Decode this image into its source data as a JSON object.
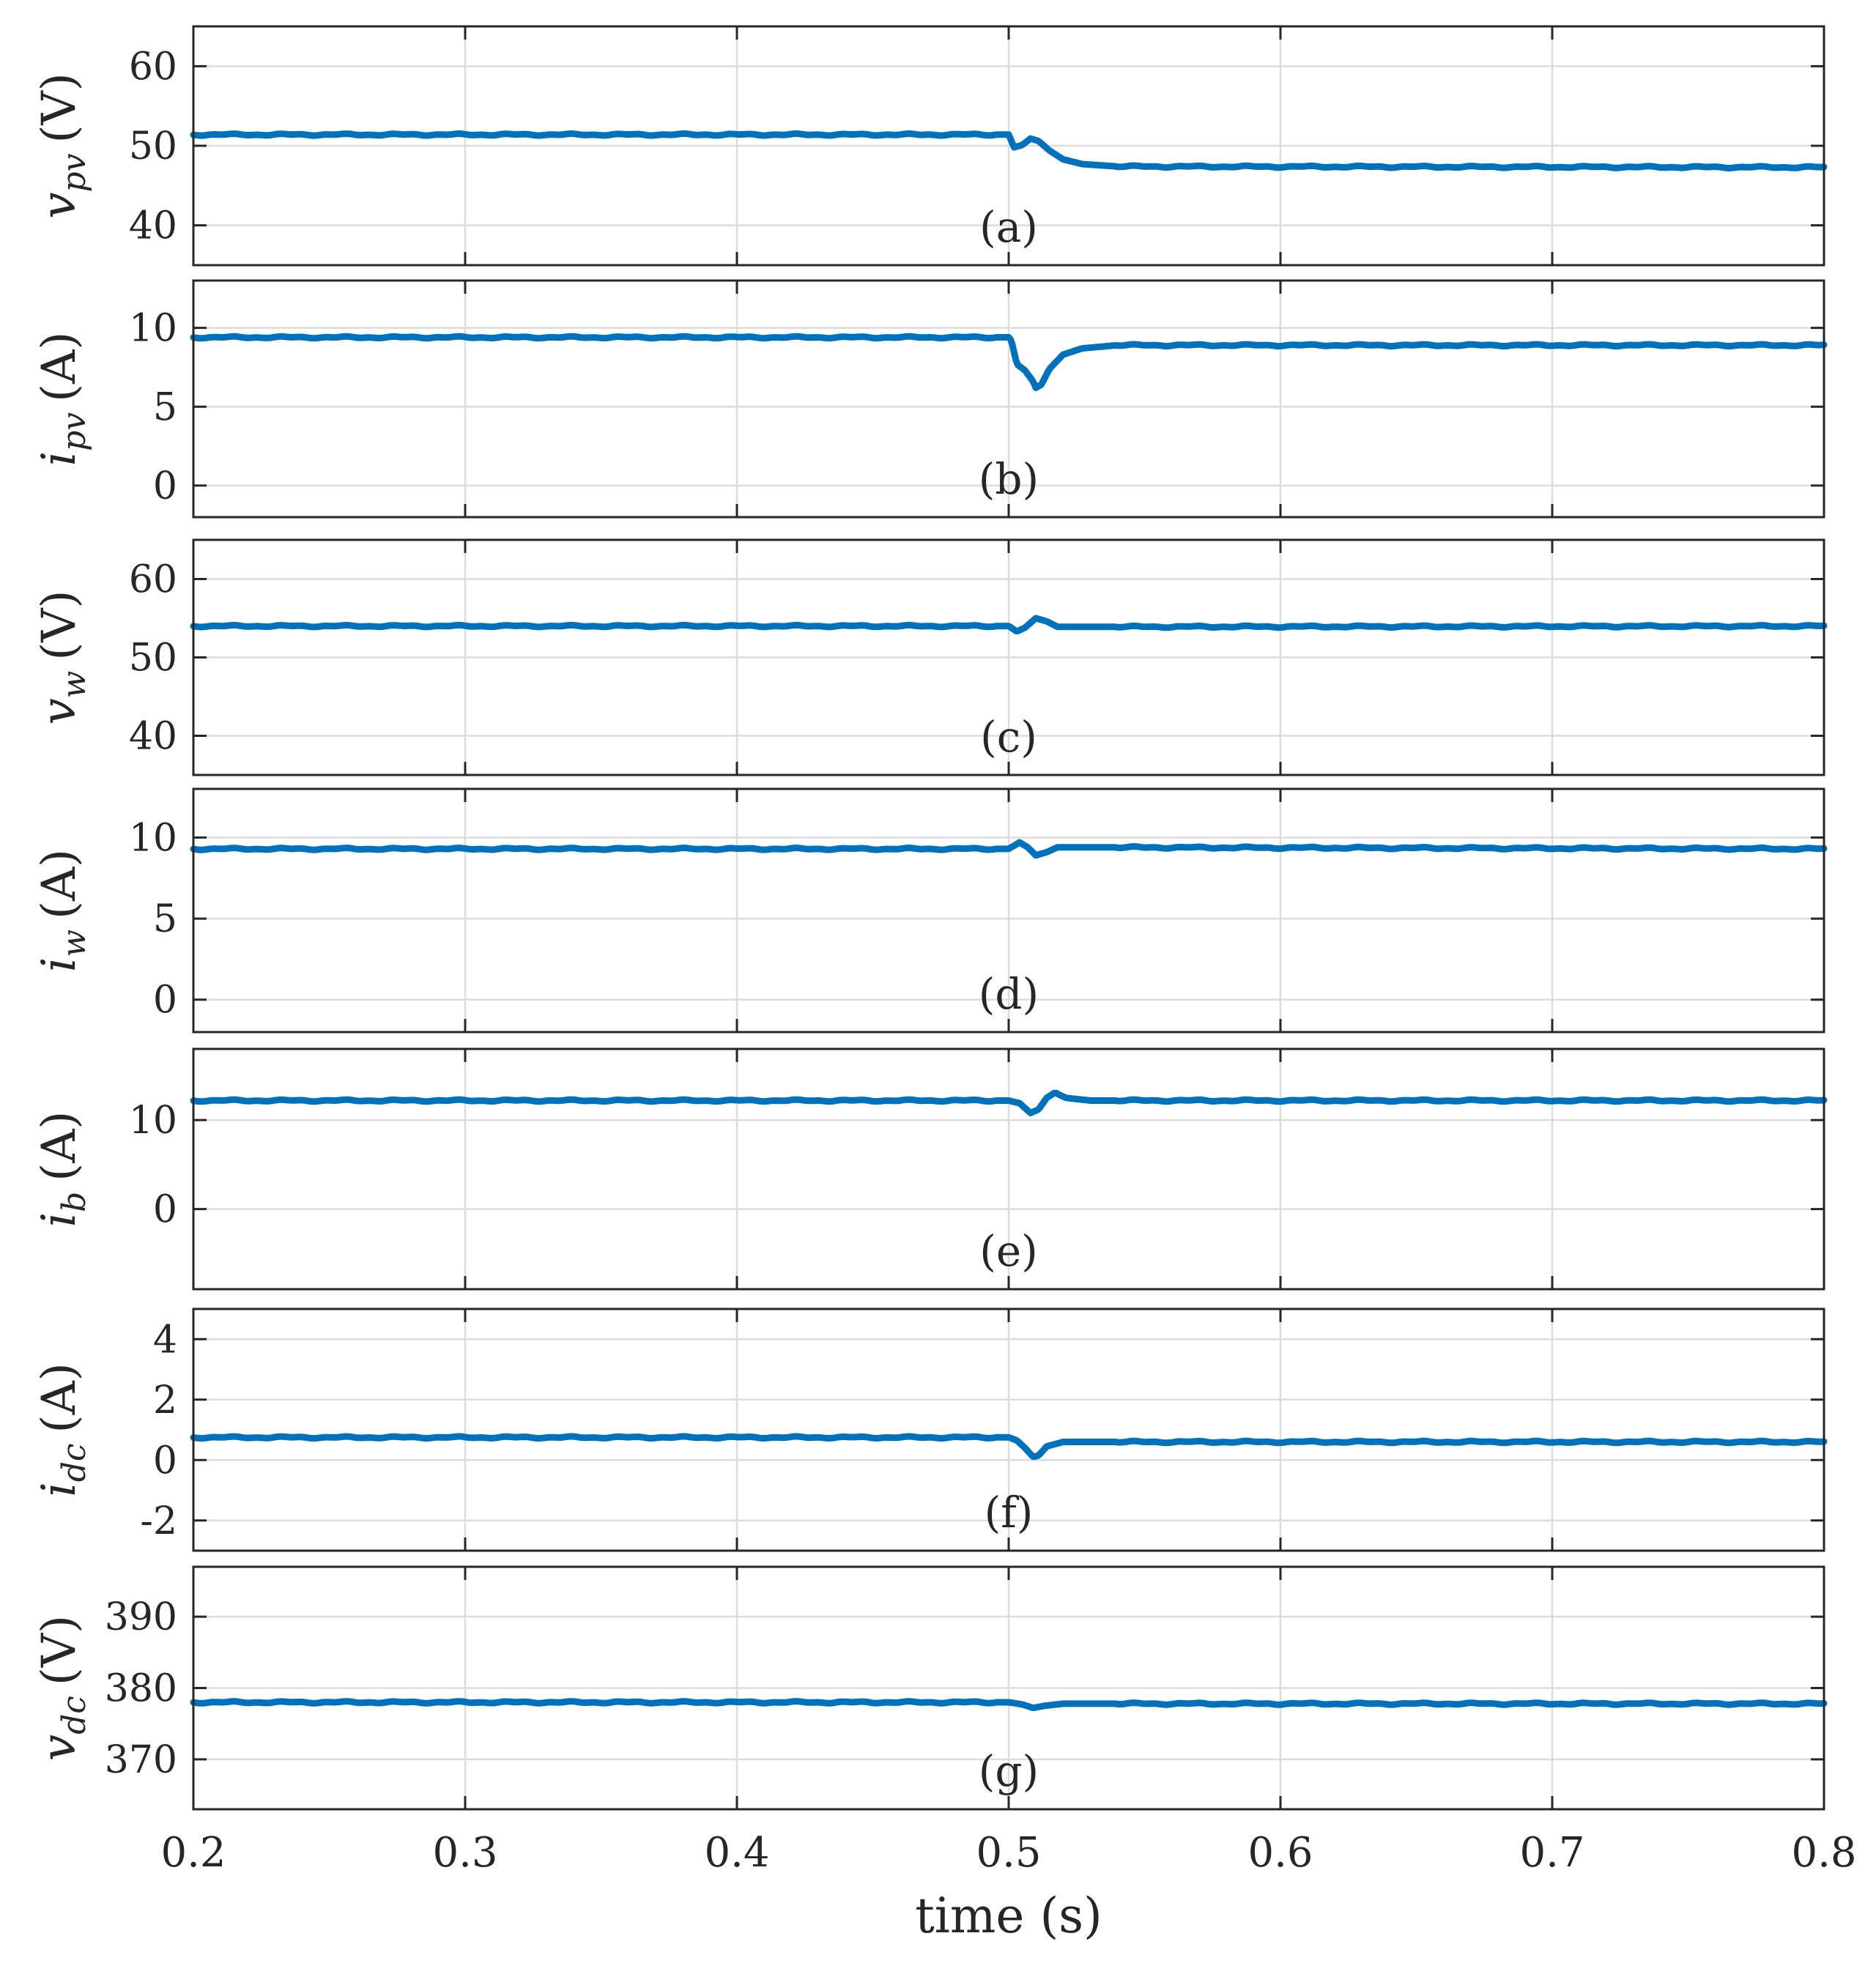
{
  "chart_data": {
    "type": "line",
    "layout": "stacked-subplots",
    "shared_x": {
      "label": "time (s)",
      "range": [
        0.2,
        0.8
      ],
      "ticks": [
        0.2,
        0.3,
        0.4,
        0.5,
        0.6,
        0.7,
        0.8
      ],
      "tick_labels": [
        "0.2",
        "0.3",
        "0.4",
        "0.5",
        "0.6",
        "0.7",
        "0.8"
      ]
    },
    "grid": true,
    "series_color": "#0072bd",
    "panels": [
      {
        "id": "a",
        "tag": "(a)",
        "ylabel_var": "v",
        "ylabel_sub": "pv",
        "ylabel_unit": "(V)",
        "ylim": [
          35,
          65
        ],
        "yticks": [
          40,
          50,
          60
        ],
        "ytick_labels": [
          "40",
          "50",
          "60"
        ],
        "points": [
          [
            0.2,
            51.4
          ],
          [
            0.5,
            51.4
          ],
          [
            0.502,
            49.8
          ],
          [
            0.505,
            50.1
          ],
          [
            0.508,
            50.9
          ],
          [
            0.511,
            50.6
          ],
          [
            0.515,
            49.4
          ],
          [
            0.52,
            48.3
          ],
          [
            0.527,
            47.7
          ],
          [
            0.54,
            47.4
          ],
          [
            0.8,
            47.3
          ]
        ]
      },
      {
        "id": "b",
        "tag": "(b)",
        "ylabel_var": "i",
        "ylabel_sub": "pv",
        "ylabel_unit": "(A)",
        "ylim": [
          -2,
          13
        ],
        "yticks": [
          0,
          5,
          10
        ],
        "ytick_labels": [
          "0",
          "5",
          "10"
        ],
        "points": [
          [
            0.2,
            9.4
          ],
          [
            0.5,
            9.4
          ],
          [
            0.501,
            9.2
          ],
          [
            0.503,
            7.7
          ],
          [
            0.506,
            7.3
          ],
          [
            0.509,
            6.6
          ],
          [
            0.51,
            6.2
          ],
          [
            0.512,
            6.4
          ],
          [
            0.515,
            7.4
          ],
          [
            0.52,
            8.3
          ],
          [
            0.527,
            8.7
          ],
          [
            0.54,
            8.9
          ],
          [
            0.8,
            8.9
          ]
        ]
      },
      {
        "id": "c",
        "tag": "(c)",
        "ylabel_var": "v",
        "ylabel_sub": "w",
        "ylabel_unit": "(V)",
        "ylim": [
          35,
          65
        ],
        "yticks": [
          40,
          50,
          60
        ],
        "ytick_labels": [
          "40",
          "50",
          "60"
        ],
        "points": [
          [
            0.2,
            54.0
          ],
          [
            0.5,
            54.0
          ],
          [
            0.503,
            53.3
          ],
          [
            0.506,
            53.8
          ],
          [
            0.51,
            55.0
          ],
          [
            0.514,
            54.6
          ],
          [
            0.518,
            53.9
          ],
          [
            0.524,
            53.9
          ],
          [
            0.8,
            54.0
          ]
        ]
      },
      {
        "id": "d",
        "tag": "(d)",
        "ylabel_var": "i",
        "ylabel_sub": "w",
        "ylabel_unit": "(A)",
        "ylim": [
          -2,
          13
        ],
        "yticks": [
          0,
          5,
          10
        ],
        "ytick_labels": [
          "0",
          "5",
          "10"
        ],
        "points": [
          [
            0.2,
            9.3
          ],
          [
            0.5,
            9.3
          ],
          [
            0.504,
            9.7
          ],
          [
            0.507,
            9.4
          ],
          [
            0.51,
            8.9
          ],
          [
            0.514,
            9.1
          ],
          [
            0.518,
            9.4
          ],
          [
            0.8,
            9.3
          ]
        ]
      },
      {
        "id": "e",
        "tag": "(e)",
        "ylabel_var": "i",
        "ylabel_sub": "b",
        "ylabel_unit": "(A)",
        "ylim": [
          -9,
          18
        ],
        "yticks": [
          0,
          10
        ],
        "ytick_labels": [
          "0",
          "10"
        ],
        "points": [
          [
            0.2,
            12.2
          ],
          [
            0.5,
            12.2
          ],
          [
            0.504,
            11.9
          ],
          [
            0.508,
            10.8
          ],
          [
            0.511,
            11.2
          ],
          [
            0.514,
            12.5
          ],
          [
            0.517,
            13.1
          ],
          [
            0.521,
            12.5
          ],
          [
            0.53,
            12.2
          ],
          [
            0.8,
            12.2
          ]
        ]
      },
      {
        "id": "f",
        "tag": "(f)",
        "ylabel_var": "i",
        "ylabel_sub": "dc",
        "ylabel_unit": "(A)",
        "ylim": [
          -3,
          5
        ],
        "yticks": [
          -2,
          0,
          2,
          4
        ],
        "ytick_labels": [
          "-2",
          "0",
          "2",
          "4"
        ],
        "points": [
          [
            0.2,
            0.75
          ],
          [
            0.5,
            0.75
          ],
          [
            0.503,
            0.65
          ],
          [
            0.506,
            0.4
          ],
          [
            0.509,
            0.1
          ],
          [
            0.511,
            0.15
          ],
          [
            0.514,
            0.45
          ],
          [
            0.52,
            0.6
          ],
          [
            0.8,
            0.6
          ]
        ]
      },
      {
        "id": "g",
        "tag": "(g)",
        "ylabel_var": "v",
        "ylabel_sub": "dc",
        "ylabel_unit": "(V)",
        "ylim": [
          363,
          397
        ],
        "yticks": [
          370,
          380,
          390
        ],
        "ytick_labels": [
          "370",
          "380",
          "390"
        ],
        "points": [
          [
            0.2,
            378.0
          ],
          [
            0.5,
            378.0
          ],
          [
            0.505,
            377.7
          ],
          [
            0.509,
            377.2
          ],
          [
            0.513,
            377.5
          ],
          [
            0.52,
            377.8
          ],
          [
            0.8,
            377.8
          ]
        ]
      }
    ]
  }
}
